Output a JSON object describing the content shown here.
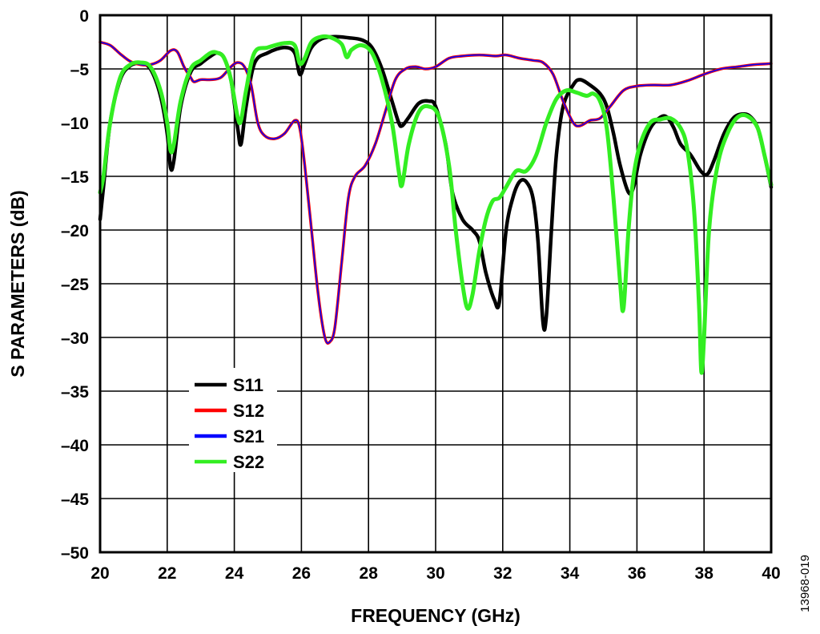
{
  "chart_data": {
    "type": "line",
    "xlabel": "FREQUENCY (GHz)",
    "ylabel": "S PARAMETERS (dB)",
    "xlim": [
      20,
      40
    ],
    "ylim": [
      -50,
      0
    ],
    "x_ticks": [
      20,
      22,
      24,
      26,
      28,
      30,
      32,
      34,
      36,
      38,
      40
    ],
    "y_ticks": [
      0,
      -5,
      -10,
      -15,
      -20,
      -25,
      -30,
      -35,
      -40,
      -45,
      -50
    ],
    "x_tick_labels": [
      "20",
      "22",
      "24",
      "26",
      "28",
      "30",
      "32",
      "34",
      "36",
      "38",
      "40"
    ],
    "y_tick_labels": [
      "0",
      "–5",
      "–10",
      "–15",
      "–20",
      "–25",
      "–30",
      "–35",
      "–40",
      "–45",
      "–50"
    ],
    "grid": true,
    "legend_position": "lower-left",
    "figure_id": "13968-019",
    "series": [
      {
        "name": "S11",
        "color": "#000000",
        "points": [
          [
            20.0,
            -19
          ],
          [
            20.1,
            -16
          ],
          [
            20.3,
            -10
          ],
          [
            20.6,
            -6
          ],
          [
            20.9,
            -4.7
          ],
          [
            21.2,
            -4.5
          ],
          [
            21.5,
            -5
          ],
          [
            21.8,
            -7.5
          ],
          [
            22.0,
            -11
          ],
          [
            22.1,
            -14.2
          ],
          [
            22.2,
            -13.5
          ],
          [
            22.4,
            -8.5
          ],
          [
            22.7,
            -5.3
          ],
          [
            23.0,
            -4.5
          ],
          [
            23.3,
            -3.8
          ],
          [
            23.5,
            -3.5
          ],
          [
            23.7,
            -4
          ],
          [
            23.9,
            -6
          ],
          [
            24.1,
            -10.5
          ],
          [
            24.2,
            -12
          ],
          [
            24.35,
            -8.5
          ],
          [
            24.6,
            -4.5
          ],
          [
            25.0,
            -3.5
          ],
          [
            25.5,
            -3
          ],
          [
            25.8,
            -3.5
          ],
          [
            25.95,
            -5.5
          ],
          [
            26.1,
            -4.5
          ],
          [
            26.3,
            -3
          ],
          [
            26.6,
            -2.2
          ],
          [
            27.0,
            -2
          ],
          [
            27.4,
            -2.1
          ],
          [
            27.8,
            -2.3
          ],
          [
            28.1,
            -3
          ],
          [
            28.4,
            -5
          ],
          [
            28.7,
            -8
          ],
          [
            28.9,
            -10
          ],
          [
            29.0,
            -10.3
          ],
          [
            29.2,
            -9.5
          ],
          [
            29.5,
            -8.2
          ],
          [
            29.8,
            -8
          ],
          [
            30.0,
            -8.5
          ],
          [
            30.3,
            -12
          ],
          [
            30.5,
            -16.5
          ],
          [
            30.8,
            -19
          ],
          [
            31.1,
            -20
          ],
          [
            31.3,
            -21
          ],
          [
            31.5,
            -24
          ],
          [
            31.75,
            -26.5
          ],
          [
            31.9,
            -26.7
          ],
          [
            32.1,
            -20
          ],
          [
            32.3,
            -17
          ],
          [
            32.5,
            -15.5
          ],
          [
            32.7,
            -15.5
          ],
          [
            32.9,
            -17
          ],
          [
            33.05,
            -21
          ],
          [
            33.2,
            -28.6
          ],
          [
            33.3,
            -28
          ],
          [
            33.45,
            -20
          ],
          [
            33.6,
            -13
          ],
          [
            33.8,
            -8.5
          ],
          [
            34.1,
            -6.5
          ],
          [
            34.3,
            -6
          ],
          [
            34.6,
            -6.5
          ],
          [
            34.9,
            -7.3
          ],
          [
            35.1,
            -8.5
          ],
          [
            35.3,
            -11
          ],
          [
            35.5,
            -14
          ],
          [
            35.75,
            -16.5
          ],
          [
            35.9,
            -16
          ],
          [
            36.1,
            -13
          ],
          [
            36.4,
            -10.5
          ],
          [
            36.7,
            -9.5
          ],
          [
            36.9,
            -9.5
          ],
          [
            37.1,
            -10.5
          ],
          [
            37.3,
            -12
          ],
          [
            37.6,
            -13
          ],
          [
            37.9,
            -14.5
          ],
          [
            38.1,
            -14.8
          ],
          [
            38.3,
            -13.5
          ],
          [
            38.6,
            -11
          ],
          [
            38.9,
            -9.5
          ],
          [
            39.2,
            -9.2
          ],
          [
            39.4,
            -9.5
          ],
          [
            39.6,
            -10.5
          ],
          [
            39.8,
            -13
          ],
          [
            40.0,
            -16
          ]
        ]
      },
      {
        "name": "S12",
        "color": "#ff0000",
        "points": [
          [
            20.0,
            -2.5
          ],
          [
            20.3,
            -2.8
          ],
          [
            20.6,
            -3.6
          ],
          [
            20.9,
            -4.3
          ],
          [
            21.2,
            -4.6
          ],
          [
            21.5,
            -4.6
          ],
          [
            21.8,
            -4.2
          ],
          [
            22.1,
            -3.3
          ],
          [
            22.3,
            -3.4
          ],
          [
            22.5,
            -4.8
          ],
          [
            22.7,
            -5.8
          ],
          [
            22.8,
            -6.2
          ],
          [
            23.0,
            -6.0
          ],
          [
            23.3,
            -6.0
          ],
          [
            23.6,
            -5.8
          ],
          [
            23.9,
            -4.8
          ],
          [
            24.1,
            -4.4
          ],
          [
            24.3,
            -4.8
          ],
          [
            24.5,
            -6.5
          ],
          [
            24.7,
            -10
          ],
          [
            24.9,
            -11.2
          ],
          [
            25.2,
            -11.5
          ],
          [
            25.5,
            -11
          ],
          [
            25.8,
            -9.8
          ],
          [
            25.95,
            -10.5
          ],
          [
            26.1,
            -14
          ],
          [
            26.3,
            -20
          ],
          [
            26.5,
            -26
          ],
          [
            26.7,
            -30
          ],
          [
            26.85,
            -30.4
          ],
          [
            27.0,
            -29
          ],
          [
            27.2,
            -23
          ],
          [
            27.4,
            -17
          ],
          [
            27.6,
            -15
          ],
          [
            27.9,
            -14
          ],
          [
            28.2,
            -12
          ],
          [
            28.5,
            -9
          ],
          [
            28.8,
            -6
          ],
          [
            29.1,
            -5
          ],
          [
            29.4,
            -4.8
          ],
          [
            29.7,
            -5
          ],
          [
            30.0,
            -4.8
          ],
          [
            30.4,
            -4
          ],
          [
            30.8,
            -3.8
          ],
          [
            31.3,
            -3.7
          ],
          [
            31.8,
            -3.8
          ],
          [
            32.1,
            -3.7
          ],
          [
            32.5,
            -4
          ],
          [
            32.9,
            -4.2
          ],
          [
            33.2,
            -4.4
          ],
          [
            33.5,
            -5.5
          ],
          [
            33.8,
            -8
          ],
          [
            34.1,
            -10
          ],
          [
            34.3,
            -10.3
          ],
          [
            34.6,
            -9.8
          ],
          [
            34.9,
            -9.6
          ],
          [
            35.2,
            -8.5
          ],
          [
            35.6,
            -7
          ],
          [
            36.0,
            -6.6
          ],
          [
            36.5,
            -6.5
          ],
          [
            37.0,
            -6.5
          ],
          [
            37.5,
            -6.1
          ],
          [
            38.0,
            -5.5
          ],
          [
            38.5,
            -5
          ],
          [
            39.0,
            -4.8
          ],
          [
            39.5,
            -4.6
          ],
          [
            40.0,
            -4.5
          ]
        ]
      },
      {
        "name": "S21",
        "color": "#0000ff",
        "points": [
          [
            20.0,
            -2.5
          ],
          [
            20.3,
            -2.8
          ],
          [
            20.6,
            -3.6
          ],
          [
            20.9,
            -4.3
          ],
          [
            21.2,
            -4.6
          ],
          [
            21.5,
            -4.6
          ],
          [
            21.8,
            -4.2
          ],
          [
            22.1,
            -3.3
          ],
          [
            22.3,
            -3.4
          ],
          [
            22.5,
            -4.8
          ],
          [
            22.7,
            -5.8
          ],
          [
            22.8,
            -6.2
          ],
          [
            23.0,
            -6.0
          ],
          [
            23.3,
            -6.0
          ],
          [
            23.6,
            -5.8
          ],
          [
            23.9,
            -4.8
          ],
          [
            24.1,
            -4.4
          ],
          [
            24.3,
            -4.8
          ],
          [
            24.5,
            -6.5
          ],
          [
            24.7,
            -10
          ],
          [
            24.9,
            -11.2
          ],
          [
            25.2,
            -11.5
          ],
          [
            25.5,
            -11
          ],
          [
            25.8,
            -9.8
          ],
          [
            25.95,
            -10.5
          ],
          [
            26.1,
            -14
          ],
          [
            26.3,
            -20
          ],
          [
            26.5,
            -26
          ],
          [
            26.7,
            -30
          ],
          [
            26.85,
            -30.4
          ],
          [
            27.0,
            -29
          ],
          [
            27.2,
            -23
          ],
          [
            27.4,
            -17
          ],
          [
            27.6,
            -15
          ],
          [
            27.9,
            -14
          ],
          [
            28.2,
            -12
          ],
          [
            28.5,
            -9
          ],
          [
            28.8,
            -6
          ],
          [
            29.1,
            -5
          ],
          [
            29.4,
            -4.8
          ],
          [
            29.7,
            -5
          ],
          [
            30.0,
            -4.8
          ],
          [
            30.4,
            -4
          ],
          [
            30.8,
            -3.8
          ],
          [
            31.3,
            -3.7
          ],
          [
            31.8,
            -3.8
          ],
          [
            32.1,
            -3.7
          ],
          [
            32.5,
            -4
          ],
          [
            32.9,
            -4.2
          ],
          [
            33.2,
            -4.4
          ],
          [
            33.5,
            -5.5
          ],
          [
            33.8,
            -8
          ],
          [
            34.1,
            -10
          ],
          [
            34.3,
            -10.3
          ],
          [
            34.6,
            -9.8
          ],
          [
            34.9,
            -9.6
          ],
          [
            35.2,
            -8.5
          ],
          [
            35.6,
            -7
          ],
          [
            36.0,
            -6.6
          ],
          [
            36.5,
            -6.5
          ],
          [
            37.0,
            -6.5
          ],
          [
            37.5,
            -6.1
          ],
          [
            38.0,
            -5.5
          ],
          [
            38.5,
            -5
          ],
          [
            39.0,
            -4.8
          ],
          [
            39.5,
            -4.6
          ],
          [
            40.0,
            -4.5
          ]
        ]
      },
      {
        "name": "S22",
        "color": "#33ee22",
        "points": [
          [
            20.0,
            -16.5
          ],
          [
            20.1,
            -15
          ],
          [
            20.3,
            -10
          ],
          [
            20.6,
            -5.8
          ],
          [
            20.9,
            -4.6
          ],
          [
            21.2,
            -4.4
          ],
          [
            21.5,
            -4.8
          ],
          [
            21.8,
            -7
          ],
          [
            22.0,
            -10
          ],
          [
            22.1,
            -12.6
          ],
          [
            22.2,
            -12
          ],
          [
            22.4,
            -8
          ],
          [
            22.7,
            -5
          ],
          [
            23.0,
            -4.2
          ],
          [
            23.3,
            -3.5
          ],
          [
            23.5,
            -3.5
          ],
          [
            23.7,
            -4
          ],
          [
            23.9,
            -6
          ],
          [
            24.1,
            -9.5
          ],
          [
            24.2,
            -9.8
          ],
          [
            24.35,
            -7
          ],
          [
            24.6,
            -3.5
          ],
          [
            25.0,
            -3
          ],
          [
            25.5,
            -2.6
          ],
          [
            25.8,
            -2.8
          ],
          [
            25.95,
            -4.5
          ],
          [
            26.1,
            -4
          ],
          [
            26.3,
            -2.5
          ],
          [
            26.6,
            -2
          ],
          [
            26.9,
            -2.1
          ],
          [
            27.2,
            -2.7
          ],
          [
            27.35,
            -3.9
          ],
          [
            27.5,
            -3.2
          ],
          [
            27.8,
            -2.8
          ],
          [
            28.1,
            -3.5
          ],
          [
            28.4,
            -6
          ],
          [
            28.7,
            -10
          ],
          [
            28.9,
            -14.5
          ],
          [
            29.0,
            -15.8
          ],
          [
            29.2,
            -12
          ],
          [
            29.5,
            -9
          ],
          [
            29.8,
            -8.5
          ],
          [
            30.1,
            -9.5
          ],
          [
            30.4,
            -14
          ],
          [
            30.6,
            -20
          ],
          [
            30.8,
            -25
          ],
          [
            30.95,
            -27.3
          ],
          [
            31.1,
            -26
          ],
          [
            31.3,
            -22
          ],
          [
            31.5,
            -19
          ],
          [
            31.7,
            -17.3
          ],
          [
            31.9,
            -17
          ],
          [
            32.1,
            -16
          ],
          [
            32.4,
            -14.5
          ],
          [
            32.7,
            -14.5
          ],
          [
            33.0,
            -13
          ],
          [
            33.3,
            -10
          ],
          [
            33.6,
            -7.8
          ],
          [
            33.9,
            -7
          ],
          [
            34.2,
            -7.2
          ],
          [
            34.5,
            -7.5
          ],
          [
            34.7,
            -7.3
          ],
          [
            34.9,
            -8
          ],
          [
            35.1,
            -10.5
          ],
          [
            35.3,
            -17
          ],
          [
            35.5,
            -25
          ],
          [
            35.6,
            -27.3
          ],
          [
            35.75,
            -20
          ],
          [
            35.9,
            -15
          ],
          [
            36.1,
            -12
          ],
          [
            36.4,
            -10
          ],
          [
            36.7,
            -9.7
          ],
          [
            37.0,
            -9.6
          ],
          [
            37.3,
            -10.5
          ],
          [
            37.5,
            -12.5
          ],
          [
            37.7,
            -18
          ],
          [
            37.85,
            -27
          ],
          [
            37.92,
            -33.2
          ],
          [
            38.0,
            -30
          ],
          [
            38.15,
            -20
          ],
          [
            38.4,
            -14
          ],
          [
            38.7,
            -11
          ],
          [
            39.0,
            -9.5
          ],
          [
            39.3,
            -9.4
          ],
          [
            39.6,
            -10.5
          ],
          [
            39.8,
            -13
          ],
          [
            40.0,
            -15.8
          ]
        ]
      }
    ]
  }
}
